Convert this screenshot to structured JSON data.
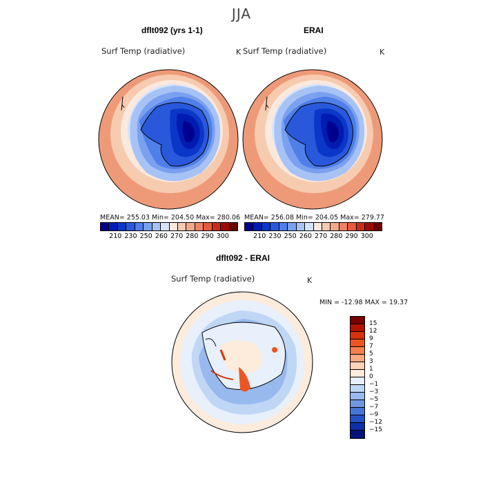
{
  "figure": {
    "season": "JJA"
  },
  "panels": [
    {
      "title": "dflt092 (yrs 1-1)",
      "variable": "Surf Temp (radiative)",
      "units": "K",
      "stats": "MEAN= 255.03   Min= 204.50   Max= 280.06"
    },
    {
      "title": "ERAI",
      "variable": "Surf Temp (radiative)",
      "units": "K",
      "stats": "MEAN= 256.08   Min= 204.05   Max= 279.77"
    },
    {
      "title": "dflt092 - ERAI",
      "variable": "Surf Temp (radiative)",
      "units": "K",
      "stats": "MIN = -12.98  MAX =  19.37"
    }
  ],
  "abs_colorbar": {
    "colors": [
      "#00008f",
      "#001bb0",
      "#0b37c8",
      "#2a58da",
      "#4f7fe8",
      "#7aa0ef",
      "#a7c3f6",
      "#d6e4fb",
      "#fbe9dd",
      "#f6cbb0",
      "#f2a98a",
      "#ee8465",
      "#e55b3d",
      "#c92d19",
      "#9a0d05",
      "#6b0000"
    ],
    "labels": [
      "210",
      "230",
      "250",
      "260",
      "270",
      "280",
      "290",
      "300"
    ]
  },
  "diff_colorbar": {
    "colors": [
      "#7a0000",
      "#b51300",
      "#d8310b",
      "#ee5422",
      "#f57f4e",
      "#f9a881",
      "#fcd3b8",
      "#fdebdc",
      "#e7f0fb",
      "#c0d6f5",
      "#98b9ee",
      "#6f97e4",
      "#4675d8",
      "#2452c4",
      "#0c2ea6",
      "#00147a"
    ],
    "labels": [
      "15",
      "12",
      "9",
      "7",
      "5",
      "3",
      "1",
      "0",
      "−1",
      "−3",
      "−5",
      "−7",
      "−9",
      "−12",
      "−15"
    ]
  }
}
